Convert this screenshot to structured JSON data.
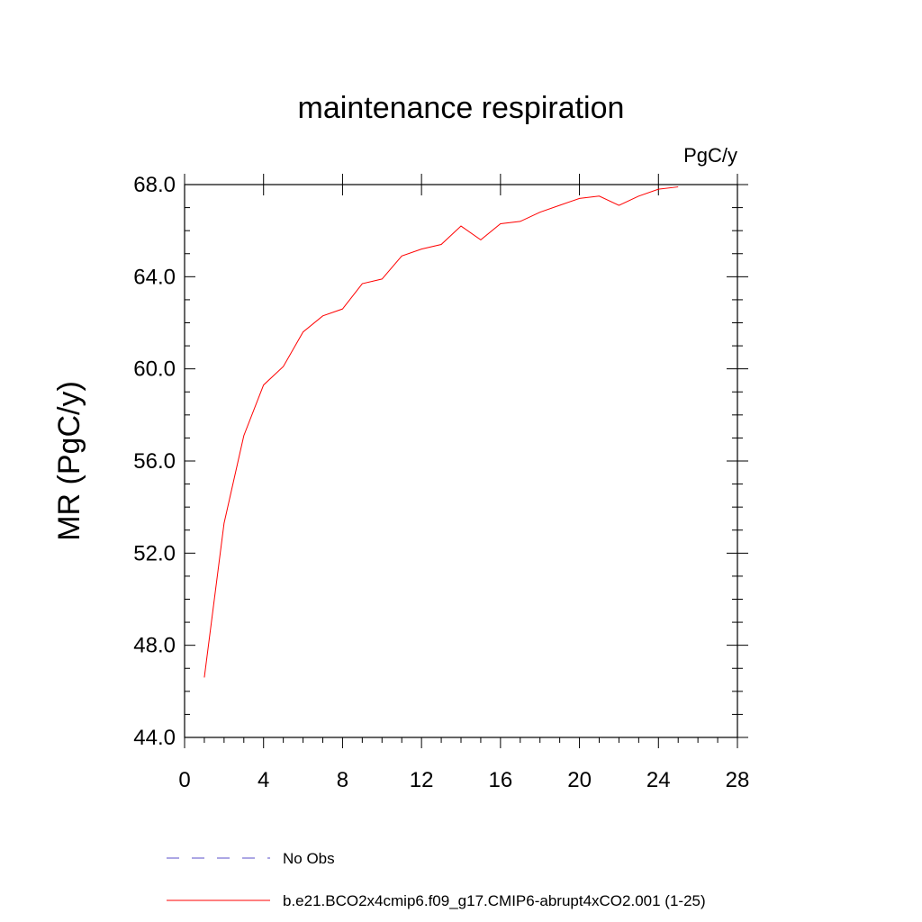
{
  "chart_data": {
    "type": "line",
    "title": "maintenance respiration",
    "units_label": "PgC/y",
    "ylabel": "MR  (PgC/y)",
    "xlabel": "",
    "xlim": [
      0,
      28
    ],
    "ylim": [
      44,
      68
    ],
    "x_ticks": [
      0,
      4,
      8,
      12,
      16,
      20,
      24,
      28
    ],
    "x_tick_labels": [
      "0",
      "4",
      "8",
      "12",
      "16",
      "20",
      "24",
      "28"
    ],
    "y_ticks": [
      44,
      48,
      52,
      56,
      60,
      64,
      68
    ],
    "y_tick_labels": [
      "44.0",
      "48.0",
      "52.0",
      "56.0",
      "60.0",
      "64.0",
      "68.0"
    ],
    "grid": false,
    "legend_placement": "bottom",
    "series": [
      {
        "name": "No Obs",
        "color": "#5a4fc8",
        "dash": "dashed",
        "x": [],
        "values": []
      },
      {
        "name": "b.e21.BCO2x4cmip6.f09_g17.CMIP6-abrupt4xCO2.001 (1-25)",
        "color": "#ff0000",
        "dash": "solid",
        "x": [
          1,
          2,
          3,
          4,
          5,
          6,
          7,
          8,
          9,
          10,
          11,
          12,
          13,
          14,
          15,
          16,
          17,
          18,
          19,
          20,
          21,
          22,
          23,
          24,
          25
        ],
        "values": [
          46.6,
          53.3,
          57.1,
          59.3,
          60.1,
          61.6,
          62.3,
          62.6,
          63.7,
          63.9,
          64.9,
          65.2,
          65.4,
          66.2,
          65.6,
          66.3,
          66.4,
          66.8,
          67.1,
          67.4,
          67.5,
          67.1,
          67.5,
          67.8,
          67.9
        ]
      }
    ]
  }
}
